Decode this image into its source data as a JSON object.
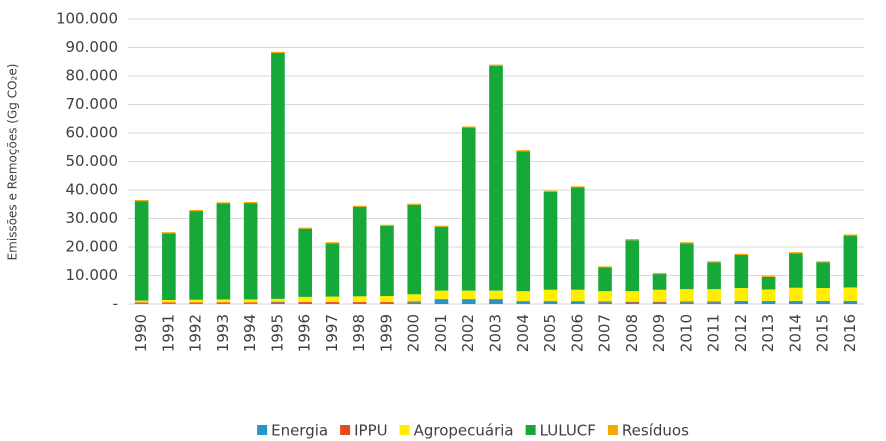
{
  "chart_data": {
    "type": "stacked_bar",
    "y_label": "Emissões e Remoções (Gg CO₂e)",
    "categories": [
      "1990",
      "1991",
      "1992",
      "1993",
      "1994",
      "1995",
      "1996",
      "1997",
      "1998",
      "1999",
      "2000",
      "2001",
      "2002",
      "2003",
      "2004",
      "2005",
      "2006",
      "2007",
      "2008",
      "2009",
      "2010",
      "2011",
      "2012",
      "2013",
      "2014",
      "2015",
      "2016"
    ],
    "series": [
      {
        "name": "Energia",
        "color": "#2a93c9",
        "values": [
          300,
          300,
          300,
          300,
          300,
          500,
          400,
          400,
          400,
          400,
          600,
          1400,
          1400,
          1400,
          700,
          700,
          700,
          600,
          500,
          500,
          600,
          600,
          800,
          800,
          800,
          800,
          800
        ]
      },
      {
        "name": "IPPU",
        "color": "#e84a1c",
        "values": [
          300,
          300,
          300,
          300,
          300,
          300,
          300,
          300,
          300,
          300,
          300,
          300,
          300,
          300,
          300,
          300,
          300,
          300,
          300,
          300,
          300,
          300,
          300,
          300,
          300,
          300,
          300
        ]
      },
      {
        "name": "Agropecuária",
        "color": "#ffee00",
        "values": [
          600,
          800,
          900,
          1000,
          1000,
          1000,
          1800,
          1900,
          2000,
          2100,
          2500,
          3000,
          3000,
          3000,
          3500,
          4000,
          4000,
          3600,
          3700,
          4200,
          4300,
          4300,
          4500,
          4000,
          4600,
          4500,
          4700
        ]
      },
      {
        "name": "LULUCF",
        "color": "#17a83a",
        "values": [
          34900,
          23400,
          31100,
          33700,
          33800,
          86300,
          23900,
          18700,
          31400,
          24600,
          31400,
          22400,
          57200,
          78900,
          49100,
          34400,
          35900,
          8300,
          17900,
          5500,
          16100,
          9400,
          11600,
          4400,
          12100,
          9000,
          18200
        ]
      },
      {
        "name": "Resíduos",
        "color": "#f5a900",
        "values": [
          400,
          400,
          400,
          400,
          400,
          400,
          400,
          400,
          400,
          400,
          400,
          400,
          400,
          400,
          400,
          400,
          400,
          400,
          400,
          400,
          400,
          400,
          400,
          400,
          400,
          400,
          400
        ]
      }
    ],
    "ylim": [
      0,
      100000
    ],
    "yticks": [
      {
        "value": 0,
        "label": "-"
      },
      {
        "value": 10000,
        "label": "10.000"
      },
      {
        "value": 20000,
        "label": "20.000"
      },
      {
        "value": 30000,
        "label": "30.000"
      },
      {
        "value": 40000,
        "label": "40.000"
      },
      {
        "value": 50000,
        "label": "50.000"
      },
      {
        "value": 60000,
        "label": "60.000"
      },
      {
        "value": 70000,
        "label": "70.000"
      },
      {
        "value": 80000,
        "label": "80.000"
      },
      {
        "value": 90000,
        "label": "90.000"
      },
      {
        "value": 100000,
        "label": "100.000"
      }
    ],
    "grid": true,
    "legend": "bottom"
  }
}
